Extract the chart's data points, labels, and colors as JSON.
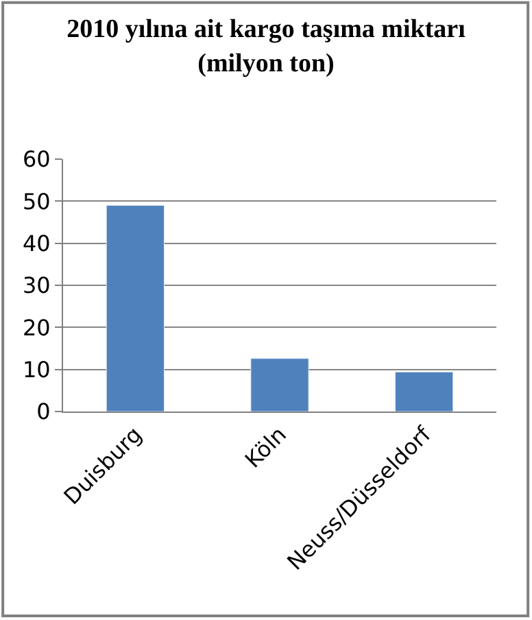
{
  "chart_data": {
    "type": "bar",
    "title": "2010 yılına ait kargo taşıma miktarı\n(milyon ton)",
    "categories": [
      "Duisburg",
      "Köln",
      "Neuss/Düsseldorf"
    ],
    "values": [
      49,
      12.6,
      9.4
    ],
    "color": "#4f81bd",
    "ylim": [
      0,
      60
    ],
    "yticks": [
      0,
      10,
      20,
      30,
      40,
      50,
      60
    ],
    "grid": "y"
  }
}
